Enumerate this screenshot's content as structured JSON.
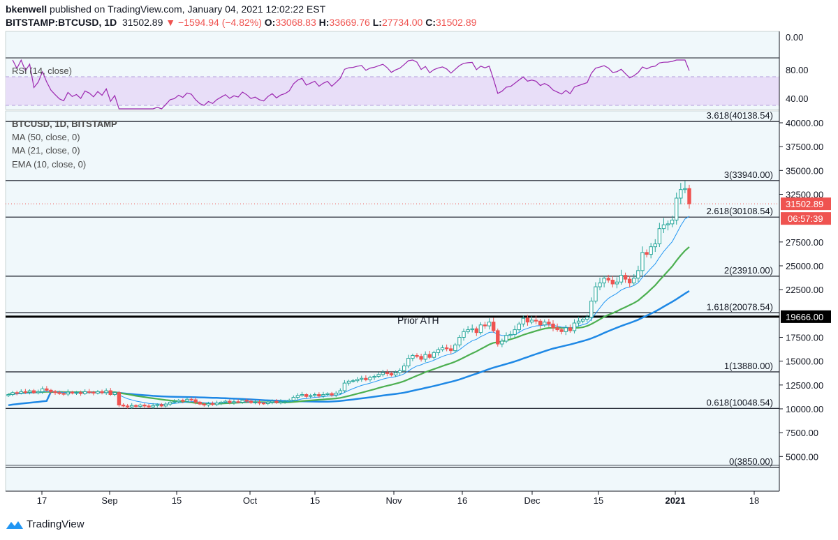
{
  "header": {
    "author": "bkenwell",
    "published_text": "published on TradingView.com, January 04, 2021 12:02:22 EST",
    "symbol": "BITSTAMP:BTCUSD, 1D",
    "last": "31502.89",
    "change": "−1594.94 (−4.82%)",
    "o_label": "O:",
    "o_value": "33068.83",
    "h_label": "H:",
    "h_value": "33669.76",
    "l_label": "L:",
    "l_value": "27734.00",
    "c_label": "C:",
    "c_value": "31502.89"
  },
  "colors": {
    "up": "#26a69a",
    "down": "#ef5350",
    "ema10": "#2196f3",
    "ma21": "#4caf50",
    "ma50": "#1e88e5",
    "rsi": "#9c27b0",
    "rsi_band": "#e8def8",
    "panel_bg": "#f0f8fb",
    "price_badge": "#ef5350"
  },
  "rsi": {
    "label": "RSI (14, close)",
    "ticks": [
      "0.00",
      "80.00",
      "40.00"
    ],
    "range": [
      0,
      100
    ]
  },
  "main": {
    "indicator_labels": [
      "BTCUSD, 1D, BITSTAMP",
      "MA (50, close, 0)",
      "MA (21, close, 0)",
      "EMA (10, close, 0)"
    ],
    "annotation": "Prior ATH",
    "price_badge": "31502.89",
    "countdown_badge": "06:57:39",
    "level_badge": "19666.00"
  },
  "chart_data": {
    "type": "candlestick",
    "yticks": [
      40000,
      37500,
      35000,
      32500,
      27500,
      25000,
      22500,
      17500,
      15000,
      12500,
      10000,
      7500,
      5000
    ],
    "ytick_labels": [
      "40000.00",
      "37500.00",
      "35000.00",
      "32500.00",
      "27500.00",
      "25000.00",
      "22500.00",
      "17500.00",
      "15000.00",
      "12500.00",
      "10000.00",
      "7500.00",
      "5000.00"
    ],
    "ylim": [
      2500,
      42000
    ],
    "xticks": [
      "17",
      "Sep",
      "15",
      "Oct",
      "15",
      "Nov",
      "16",
      "Dec",
      "15",
      "2021",
      "18"
    ],
    "fib_levels": [
      {
        "label": "3.618(40138.54)",
        "value": 40138.54
      },
      {
        "label": "3(33940.00)",
        "value": 33940.0
      },
      {
        "label": "2.618(30108.54)",
        "value": 30108.54
      },
      {
        "label": "2(23910.00)",
        "value": 23910.0
      },
      {
        "label": "1.618(20078.54)",
        "value": 20078.54
      },
      {
        "label": "1(13880.00)",
        "value": 13880.0
      },
      {
        "label": "0.618(10048.54)",
        "value": 10048.54
      },
      {
        "label": "0(3850.00)",
        "value": 3850.0
      }
    ],
    "prior_ath": 19666.0,
    "last_price": 31502.89,
    "closes": [
      11500,
      11700,
      11650,
      11800,
      11750,
      11900,
      11700,
      11800,
      12100,
      11950,
      11800,
      11700,
      11600,
      11550,
      11750,
      11650,
      11700,
      11600,
      11800,
      11750,
      11650,
      11800,
      11700,
      11900,
      11500,
      11700,
      10400,
      10300,
      10200,
      10350,
      10250,
      10400,
      10300,
      10200,
      10350,
      10450,
      10300,
      10500,
      10700,
      10750,
      10900,
      10800,
      11000,
      10950,
      10700,
      10500,
      10400,
      10550,
      10450,
      10600,
      10700,
      10800,
      10650,
      10750,
      10700,
      10900,
      10800,
      10650,
      10700,
      10600,
      10550,
      10700,
      10800,
      10650,
      10750,
      10800,
      10900,
      11200,
      11400,
      11500,
      11300,
      11400,
      11500,
      11350,
      11500,
      11600,
      11450,
      11650,
      11900,
      12700,
      12900,
      12950,
      13100,
      13200,
      13050,
      13300,
      13400,
      13600,
      13800,
      13700,
      13550,
      13800,
      14000,
      14500,
      15300,
      15600,
      15500,
      15200,
      15700,
      15400,
      15900,
      16200,
      16400,
      16300,
      16100,
      16700,
      17500,
      18100,
      18300,
      18400,
      18000,
      18800,
      18700,
      19100,
      18200,
      16800,
      17100,
      17700,
      17800,
      18300,
      18900,
      19500,
      19100,
      19300,
      19200,
      18800,
      19100,
      18900,
      18500,
      18300,
      18100,
      18500,
      18200,
      19000,
      19200,
      19400,
      19600,
      21300,
      22800,
      23200,
      23700,
      23500,
      23100,
      23300,
      24000,
      23600,
      23200,
      23700,
      24500,
      26400,
      26200,
      27000,
      27300,
      28900,
      29300,
      29400,
      29800,
      32100,
      33000,
      33100,
      31502
    ]
  }
}
